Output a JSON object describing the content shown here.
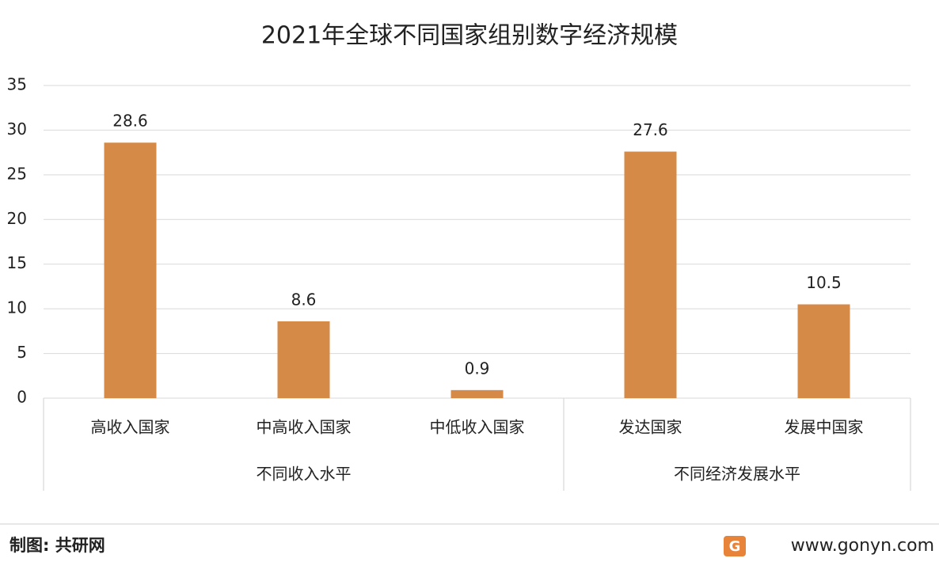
{
  "chart_data": {
    "type": "bar",
    "title": "2021年全球不同国家组别数字经济规模",
    "groups": [
      {
        "name": "不同收入水平",
        "categories": [
          "高收入国家",
          "中高收入国家",
          "中低收入国家"
        ],
        "values": [
          28.6,
          8.6,
          0.9
        ]
      },
      {
        "name": "不同经济发展水平",
        "categories": [
          "发达国家",
          "发展中国家"
        ],
        "values": [
          27.6,
          10.5
        ]
      }
    ],
    "color": "#d58a47",
    "ylim": [
      0,
      35
    ],
    "yticks": [
      0,
      5,
      10,
      15,
      20,
      25,
      30,
      35
    ],
    "grid": true
  },
  "footer": {
    "source": "制图: 共研网",
    "website": "www.gonyn.com"
  }
}
